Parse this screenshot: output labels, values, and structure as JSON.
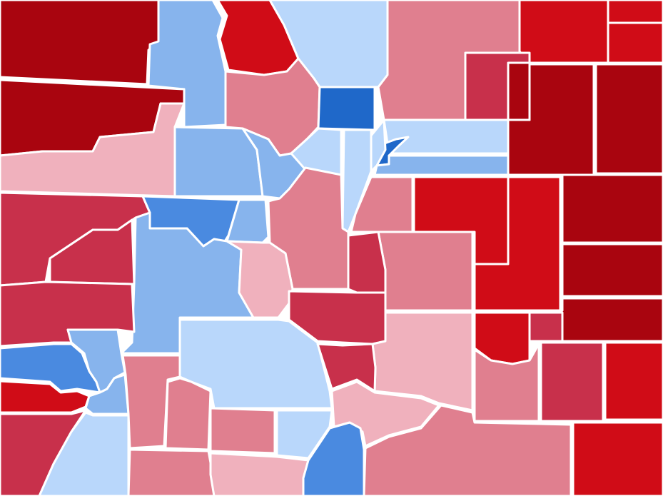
{
  "map": {
    "shading": {
      "strong-dem": "#1f68c9",
      "dem": "#4a8ae0",
      "lean-dem": "#87b4ed",
      "tilt-dem": "#b9d7fb",
      "tilt-rep": "#f0b1bd",
      "lean-rep": "#e07f8f",
      "rep": "#c8304b",
      "strong-rep": "#d00c17",
      "safe-rep": "#a9050f"
    },
    "counties": [
      {
        "id": "c01",
        "shade": "safe-rep"
      },
      {
        "id": "c02",
        "shade": "lean-dem"
      },
      {
        "id": "c03",
        "shade": "strong-rep"
      },
      {
        "id": "c04",
        "shade": "tilt-dem"
      },
      {
        "id": "c05",
        "shade": "lean-rep"
      },
      {
        "id": "c06",
        "shade": "strong-rep"
      },
      {
        "id": "c07",
        "shade": "strong-rep"
      },
      {
        "id": "c08",
        "shade": "strong-rep"
      },
      {
        "id": "c09",
        "shade": "safe-rep"
      },
      {
        "id": "c10",
        "shade": "lean-rep"
      },
      {
        "id": "c11",
        "shade": "strong-dem"
      },
      {
        "id": "c12",
        "shade": "rep"
      },
      {
        "id": "c13",
        "shade": "safe-rep"
      },
      {
        "id": "c14",
        "shade": "safe-rep"
      },
      {
        "id": "c15",
        "shade": "tilt-rep"
      },
      {
        "id": "c16",
        "shade": "lean-dem"
      },
      {
        "id": "c17",
        "shade": "lean-dem"
      },
      {
        "id": "c18",
        "shade": "tilt-dem"
      },
      {
        "id": "c19",
        "shade": "tilt-dem"
      },
      {
        "id": "c20",
        "shade": "tilt-dem"
      },
      {
        "id": "c21",
        "shade": "strong-dem"
      },
      {
        "id": "c22",
        "shade": "tilt-dem"
      },
      {
        "id": "c23",
        "shade": "lean-dem"
      },
      {
        "id": "c24",
        "shade": "strong-rep"
      },
      {
        "id": "c25",
        "shade": "strong-rep"
      },
      {
        "id": "c26",
        "shade": "safe-rep"
      },
      {
        "id": "c27",
        "shade": "rep"
      },
      {
        "id": "c28",
        "shade": "dem"
      },
      {
        "id": "c29",
        "shade": "lean-dem"
      },
      {
        "id": "c30",
        "shade": "lean-rep"
      },
      {
        "id": "c31",
        "shade": "lean-rep"
      },
      {
        "id": "c32",
        "shade": "lean-rep"
      },
      {
        "id": "c33",
        "shade": "safe-rep"
      },
      {
        "id": "c34",
        "shade": "rep"
      },
      {
        "id": "c35",
        "shade": "lean-dem"
      },
      {
        "id": "c36",
        "shade": "tilt-rep"
      },
      {
        "id": "c37",
        "shade": "rep"
      },
      {
        "id": "c38",
        "shade": "rep"
      },
      {
        "id": "c39",
        "shade": "lean-rep"
      },
      {
        "id": "c40",
        "shade": "strong-rep"
      },
      {
        "id": "c41",
        "shade": "safe-rep"
      },
      {
        "id": "c42",
        "shade": "rep"
      },
      {
        "id": "c43",
        "shade": "lean-dem"
      },
      {
        "id": "c44",
        "shade": "tilt-dem"
      },
      {
        "id": "c45",
        "shade": "rep"
      },
      {
        "id": "c46",
        "shade": "tilt-rep"
      },
      {
        "id": "c47",
        "shade": "strong-rep"
      },
      {
        "id": "c48",
        "shade": "dem"
      },
      {
        "id": "c49",
        "shade": "strong-rep"
      },
      {
        "id": "c50",
        "shade": "rep"
      },
      {
        "id": "c51",
        "shade": "lean-dem"
      },
      {
        "id": "c52",
        "shade": "lean-rep"
      },
      {
        "id": "c53",
        "shade": "lean-rep"
      },
      {
        "id": "c54",
        "shade": "tilt-rep"
      },
      {
        "id": "c55",
        "shade": "lean-rep"
      },
      {
        "id": "c56",
        "shade": "rep"
      },
      {
        "id": "c57",
        "shade": "strong-rep"
      },
      {
        "id": "c58",
        "shade": "rep"
      },
      {
        "id": "c59",
        "shade": "tilt-dem"
      },
      {
        "id": "c60",
        "shade": "lean-rep"
      },
      {
        "id": "c61",
        "shade": "lean-rep"
      },
      {
        "id": "c62",
        "shade": "tilt-dem"
      },
      {
        "id": "c63",
        "shade": "tilt-rep"
      },
      {
        "id": "c64",
        "shade": "dem"
      },
      {
        "id": "c65",
        "shade": "lean-rep"
      },
      {
        "id": "c66",
        "shade": "safe-rep"
      }
    ]
  }
}
